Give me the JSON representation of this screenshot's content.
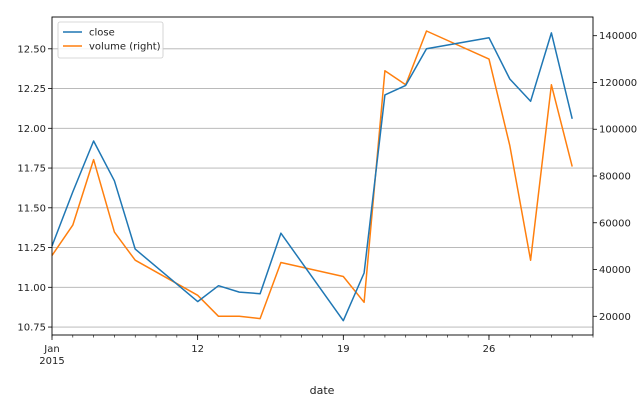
{
  "chart_data": {
    "type": "line",
    "xlabel": "date",
    "x": [
      "2015-01-05",
      "2015-01-06",
      "2015-01-07",
      "2015-01-08",
      "2015-01-09",
      "2015-01-12",
      "2015-01-13",
      "2015-01-14",
      "2015-01-15",
      "2015-01-16",
      "2015-01-19",
      "2015-01-20",
      "2015-01-21",
      "2015-01-22",
      "2015-01-23",
      "2015-01-26",
      "2015-01-27",
      "2015-01-28",
      "2015-01-29",
      "2015-01-30"
    ],
    "x_ticks": [
      {
        "date": "2015-01-05",
        "label": "Jan",
        "sublabel": "2015"
      },
      {
        "date": "2015-01-12",
        "label": "12"
      },
      {
        "date": "2015-01-19",
        "label": "19"
      },
      {
        "date": "2015-01-26",
        "label": "26"
      }
    ],
    "xlim": [
      "2015-01-05",
      "2015-01-31"
    ],
    "ylim_left": [
      10.7,
      12.7
    ],
    "ylim_right": [
      12000,
      148000
    ],
    "yticks_left": [
      "10.75",
      "11.00",
      "11.25",
      "11.50",
      "11.75",
      "12.00",
      "12.25",
      "12.50"
    ],
    "yticks_right": [
      "20000",
      "40000",
      "60000",
      "80000",
      "100000",
      "120000",
      "140000"
    ],
    "grid": true,
    "legend_position": "top-left",
    "series": [
      {
        "name": "close",
        "axis": "left",
        "color": "#1f77b4",
        "values": [
          11.26,
          11.6,
          11.92,
          11.67,
          11.24,
          10.91,
          11.01,
          10.97,
          10.96,
          11.34,
          10.79,
          11.09,
          12.21,
          12.27,
          12.5,
          12.57,
          12.31,
          12.17,
          12.6,
          12.06
        ]
      },
      {
        "name": "volume (right)",
        "axis": "right",
        "color": "#ff7f0e",
        "values": [
          46000,
          59000,
          87000,
          56000,
          44000,
          29000,
          20000,
          20000,
          19000,
          43000,
          37000,
          26000,
          125000,
          119000,
          142000,
          130000,
          93000,
          44000,
          119000,
          84000
        ]
      }
    ]
  }
}
